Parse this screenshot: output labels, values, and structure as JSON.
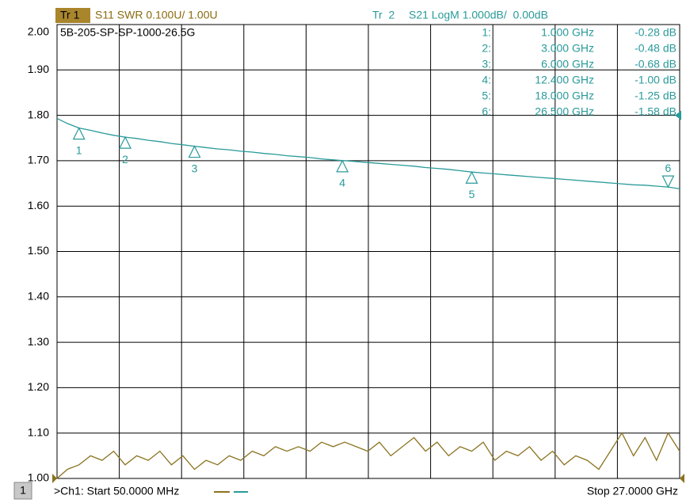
{
  "chart_data": {
    "type": "line",
    "title": "5B-205-SP-SP-1000-26.5G",
    "channel": "1",
    "start_label": ">Ch1: Start 50.0000 MHz",
    "stop_label": "Stop 27.0000 GHz",
    "xlim": [
      0.05,
      27
    ],
    "ylim": [
      1,
      2
    ],
    "y2lim": [
      -8,
      2
    ],
    "yticks": [
      {
        "value": 2,
        "label": "2.00"
      },
      {
        "value": 1.9,
        "label": "1.90"
      },
      {
        "value": 1.8,
        "label": "1.80"
      },
      {
        "value": 1.7,
        "label": "1.70"
      },
      {
        "value": 1.6,
        "label": "1.60"
      },
      {
        "value": 1.5,
        "label": "1.50"
      },
      {
        "value": 1.4,
        "label": "1.40"
      },
      {
        "value": 1.3,
        "label": "1.30"
      },
      {
        "value": 1.2,
        "label": "1.20"
      },
      {
        "value": 1.1,
        "label": "1.10"
      },
      {
        "value": 1,
        "label": "1.00"
      }
    ],
    "grid": true,
    "x": [
      0.05,
      0.5,
      1,
      1.5,
      2,
      2.5,
      3,
      3.5,
      4,
      4.5,
      5,
      5.5,
      6,
      6.5,
      7,
      7.5,
      8,
      8.5,
      9,
      9.5,
      10,
      10.5,
      11,
      11.5,
      12,
      12.5,
      13,
      13.5,
      14,
      14.5,
      15,
      15.5,
      16,
      16.5,
      17,
      17.5,
      18,
      18.5,
      19,
      19.5,
      20,
      20.5,
      21,
      21.5,
      22,
      22.5,
      23,
      23.5,
      24,
      24.5,
      25,
      25.5,
      26,
      26.5,
      27
    ],
    "series": [
      {
        "trace": "Tr 1",
        "name": "S11 SWR 0.100U/  1.00U",
        "color": "#8b7320",
        "ref": 1,
        "values": [
          1.0,
          1.02,
          1.03,
          1.05,
          1.04,
          1.06,
          1.03,
          1.05,
          1.04,
          1.06,
          1.03,
          1.05,
          1.02,
          1.04,
          1.03,
          1.05,
          1.04,
          1.06,
          1.05,
          1.07,
          1.06,
          1.07,
          1.06,
          1.08,
          1.07,
          1.08,
          1.07,
          1.06,
          1.08,
          1.05,
          1.07,
          1.09,
          1.06,
          1.08,
          1.05,
          1.07,
          1.06,
          1.08,
          1.04,
          1.06,
          1.05,
          1.07,
          1.04,
          1.06,
          1.03,
          1.05,
          1.04,
          1.02,
          1.06,
          1.1,
          1.05,
          1.09,
          1.04,
          1.1,
          1.06
        ]
      },
      {
        "trace": "Tr  2",
        "name": "S21 LogM 1.000dB/  0.00dB",
        "color": "#2a9a9a",
        "axis": "y2",
        "ref": 0,
        "values": [
          -0.07,
          -0.18,
          -0.28,
          -0.33,
          -0.39,
          -0.44,
          -0.48,
          -0.51,
          -0.55,
          -0.58,
          -0.62,
          -0.65,
          -0.68,
          -0.71,
          -0.74,
          -0.76,
          -0.79,
          -0.81,
          -0.84,
          -0.86,
          -0.89,
          -0.91,
          -0.93,
          -0.96,
          -0.98,
          -1.0,
          -1.02,
          -1.04,
          -1.06,
          -1.08,
          -1.1,
          -1.12,
          -1.15,
          -1.17,
          -1.19,
          -1.22,
          -1.25,
          -1.27,
          -1.29,
          -1.31,
          -1.33,
          -1.35,
          -1.37,
          -1.39,
          -1.41,
          -1.43,
          -1.45,
          -1.47,
          -1.49,
          -1.51,
          -1.53,
          -1.54,
          -1.56,
          -1.58,
          -1.62
        ]
      }
    ],
    "markers": [
      {
        "name": "1",
        "row_label": "1:",
        "x": 1.0,
        "x_label": "1.000 GHz",
        "value": -0.28,
        "value_label": "-0.28 dB"
      },
      {
        "name": "2",
        "row_label": "2:",
        "x": 3.0,
        "x_label": "3.000 GHz",
        "value": -0.48,
        "value_label": "-0.48 dB"
      },
      {
        "name": "3",
        "row_label": "3:",
        "x": 6.0,
        "x_label": "6.000 GHz",
        "value": -0.68,
        "value_label": "-0.68 dB"
      },
      {
        "name": "4",
        "row_label": "4:",
        "x": 12.4,
        "x_label": "12.400 GHz",
        "value": -1.0,
        "value_label": "-1.00 dB"
      },
      {
        "name": "5",
        "row_label": "5:",
        "x": 18.0,
        "x_label": "18.000 GHz",
        "value": -1.25,
        "value_label": "-1.25 dB"
      },
      {
        "name": "6",
        "row_label": "6:",
        "x": 26.5,
        "x_label": "26.500 GHz",
        "value": -1.58,
        "value_label": "-1.58 dB"
      }
    ]
  }
}
